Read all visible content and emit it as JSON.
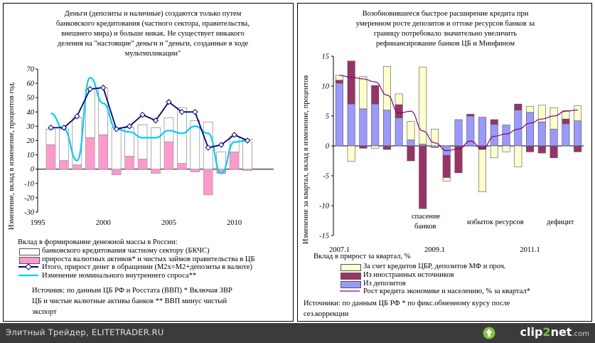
{
  "left": {
    "title": "Деньги (депозиты и наличные) создаются только путем банковского кредитования (частного сектора, правительства, внешнего мира) и больше никак. Не существует никакого деления на \"настоящие\" деньги и \"деньги, созданные в ходе мультипликации\"",
    "title_lines": [
      "Деньги (депозиты и наличные) создаются только путем",
      "банковского кредитования (частного сектора, правительства,",
      "внешнего мира) и больше никак. Не существует никакого",
      "деления на \"настоящие\" деньги и \"деньги, созданные в ходе",
      "мультипликации\""
    ],
    "ylabel": "Изменение, вклад в изменение, процентов год.",
    "legend_heading": "Вклад в формирование денежной массы в России:",
    "legend": [
      "банковского кредитования частному сектору (БКЧС)",
      "прироста валютных активов* и чистых займов правительства в ЦБ",
      "Итого, прирост денег в обращении (М2х=М2+депозиты в валюте)",
      "Изменение номинального внутреннего спроса**"
    ],
    "source_lines": [
      "Источник: по данным ЦБ РФ и Росстата (ВВП) * Включая ЗВР",
      "ЦБ и чистые валютные активы банков ** ВВП минус чистый",
      "экспорт"
    ]
  },
  "right": {
    "title": "Возобновившееся быстрое расширение кредита при умеренном росте депозитов и оттоке ресурсов банков за границу потребовало значительно увеличить рефинансирование банков ЦБ и Минфином",
    "title_lines": [
      "Возобновившееся быстрое расширение кредита при",
      "умеренном росте депозитов и оттоке ресурсов банков за",
      "границу потребовало значительно увеличить",
      "рефинансирование банков ЦБ и Минфином"
    ],
    "ylabel": "Изменение за квартал, вклад в изменение, процентов",
    "annotations": [
      "спасение",
      "банков",
      "избыток ресурсов",
      "дефицит"
    ],
    "legend_heading": "Вклад в прирост за квартал, %",
    "legend": [
      "За счет кредитов ЦБР, депозитов МФ и проч.",
      "Из иностранных источников",
      "Из депозитов",
      "Рост кредита экономике и населению, % за квартал*"
    ],
    "source_lines": [
      "Источники: по данным ЦБ РФ * по фикс.обменному курсу после",
      "сез.коррекции"
    ]
  },
  "colors": {
    "bkchs": "#ffffff",
    "fx": "#ff99cc",
    "total_line": "#000080",
    "demand_line": "#00ccff",
    "cbr": "#ffffcc",
    "foreign": "#993366",
    "deposits": "#9999ff",
    "credit_line": "#800080"
  },
  "footer": {
    "text": "Элитный Трейдер, ELITETRADER.RU",
    "logo_a": "clip",
    "logo_b": "2",
    "logo_c": "net",
    "logo_d": ".com"
  },
  "chart_data": [
    {
      "type": "bar",
      "title": "Деньги (депозиты и наличные) создаются только путем банковского кредитования (частного сектора, правительства, внешнего мира) и больше никак. Не существует никакого деления на \"настоящие\" деньги и \"деньги, созданные в ходе мультипликации\"",
      "ylabel": "Изменение, вклад в изменение, процентов год.",
      "ylim": [
        -30,
        70
      ],
      "yticks": [
        -30,
        -20,
        -10,
        0,
        10,
        20,
        30,
        40,
        50,
        60,
        70
      ],
      "xticks": [
        1995,
        2000,
        2005,
        2010
      ],
      "xlim": [
        1995,
        2013
      ],
      "years": [
        1996,
        1997,
        1998,
        1999,
        2000,
        2001,
        2002,
        2003,
        2004,
        2005,
        2006,
        2007,
        2008,
        2009,
        2010,
        2011
      ],
      "series": [
        {
          "name": "банковского кредитования частному сектору (БКЧС)",
          "kind": "bar_stack",
          "values": [
            11,
            22,
            33,
            34,
            33,
            29,
            20,
            24,
            29,
            17,
            39,
            34,
            33,
            12,
            11,
            21
          ]
        },
        {
          "name": "прироста валютных активов* и чистых займов правительства в ЦБ",
          "kind": "bar_stack",
          "values": [
            17,
            6,
            3,
            22,
            24,
            -4,
            9,
            7,
            -3,
            19,
            4,
            -2,
            -18,
            -3,
            12,
            -1
          ]
        },
        {
          "name": "Итого, прирост денег в обращении (М2х=М2+депозиты в валюте)",
          "kind": "line_marker",
          "values": [
            29,
            29,
            37,
            56,
            57,
            28,
            30,
            38,
            34,
            47,
            40,
            40,
            15,
            17,
            24,
            20
          ]
        },
        {
          "name": "Изменение номинального внутреннего спроса**",
          "kind": "line",
          "values": [
            39,
            28,
            6,
            64,
            46,
            28,
            26,
            22,
            22,
            27,
            25,
            30,
            25,
            -3,
            19,
            20
          ]
        }
      ]
    },
    {
      "type": "bar",
      "title": "Возобновившееся быстрое расширение кредита при умеренном росте депозитов и оттоке ресурсов банков за границу потребовало значительно увеличить рефинансирование банков ЦБ и Минфином",
      "ylabel": "Изменение за квартал, вклад в изменение, процентов",
      "ylim": [
        -15,
        15
      ],
      "yticks": [
        -15,
        -10,
        -5,
        0,
        5,
        10,
        15
      ],
      "xticks": [
        "2007.1",
        "2009.1",
        "2011.1"
      ],
      "categories": [
        "2007.1",
        "2007.2",
        "2007.3",
        "2007.4",
        "2008.1",
        "2008.2",
        "2008.3",
        "2008.4",
        "2009.1",
        "2009.2",
        "2009.3",
        "2009.4",
        "2010.1",
        "2010.2",
        "2010.3",
        "2010.4",
        "2011.1",
        "2011.2",
        "2011.3",
        "2011.4",
        "2012.1"
      ],
      "series": [
        {
          "name": "Из депозитов",
          "values": [
            10.5,
            7,
            6.2,
            7,
            6,
            4.7,
            1,
            0.3,
            -0.3,
            -1.6,
            4.4,
            5,
            4.8,
            3.6,
            3.5,
            6,
            5.6,
            4,
            2.8,
            3.7,
            4.2
          ]
        },
        {
          "name": "Из иностранных источников",
          "values": [
            0.5,
            7.2,
            -0.4,
            3.1,
            -0.6,
            2.2,
            -2.5,
            -10.5,
            0,
            -3.7,
            -4.5,
            0.3,
            -0.6,
            0.8,
            0,
            1,
            -1,
            -1.2,
            -2,
            0.8,
            -1
          ]
        },
        {
          "name": "За счет кредитов ЦБР, депозитов МФ и проч.",
          "values": [
            0.8,
            -2.6,
            5.4,
            -0.4,
            7.3,
            1.8,
            3.1,
            12.9,
            2.8,
            -0.6,
            0,
            0,
            -7.1,
            -2,
            -1,
            -3.5,
            1,
            2.8,
            3.6,
            1.4,
            2.5
          ]
        },
        {
          "name": "Рост кредита экономике и населению, % за квартал*",
          "kind": "line",
          "values": [
            11.8,
            11.5,
            11.2,
            10.7,
            8.5,
            5.5,
            5.8,
            2.5,
            0.5,
            -0.8,
            -0.5,
            0.8,
            -0.5,
            1.6,
            2.0,
            2.8,
            3.8,
            4.5,
            5.0,
            5.8,
            6.0
          ]
        }
      ]
    }
  ]
}
